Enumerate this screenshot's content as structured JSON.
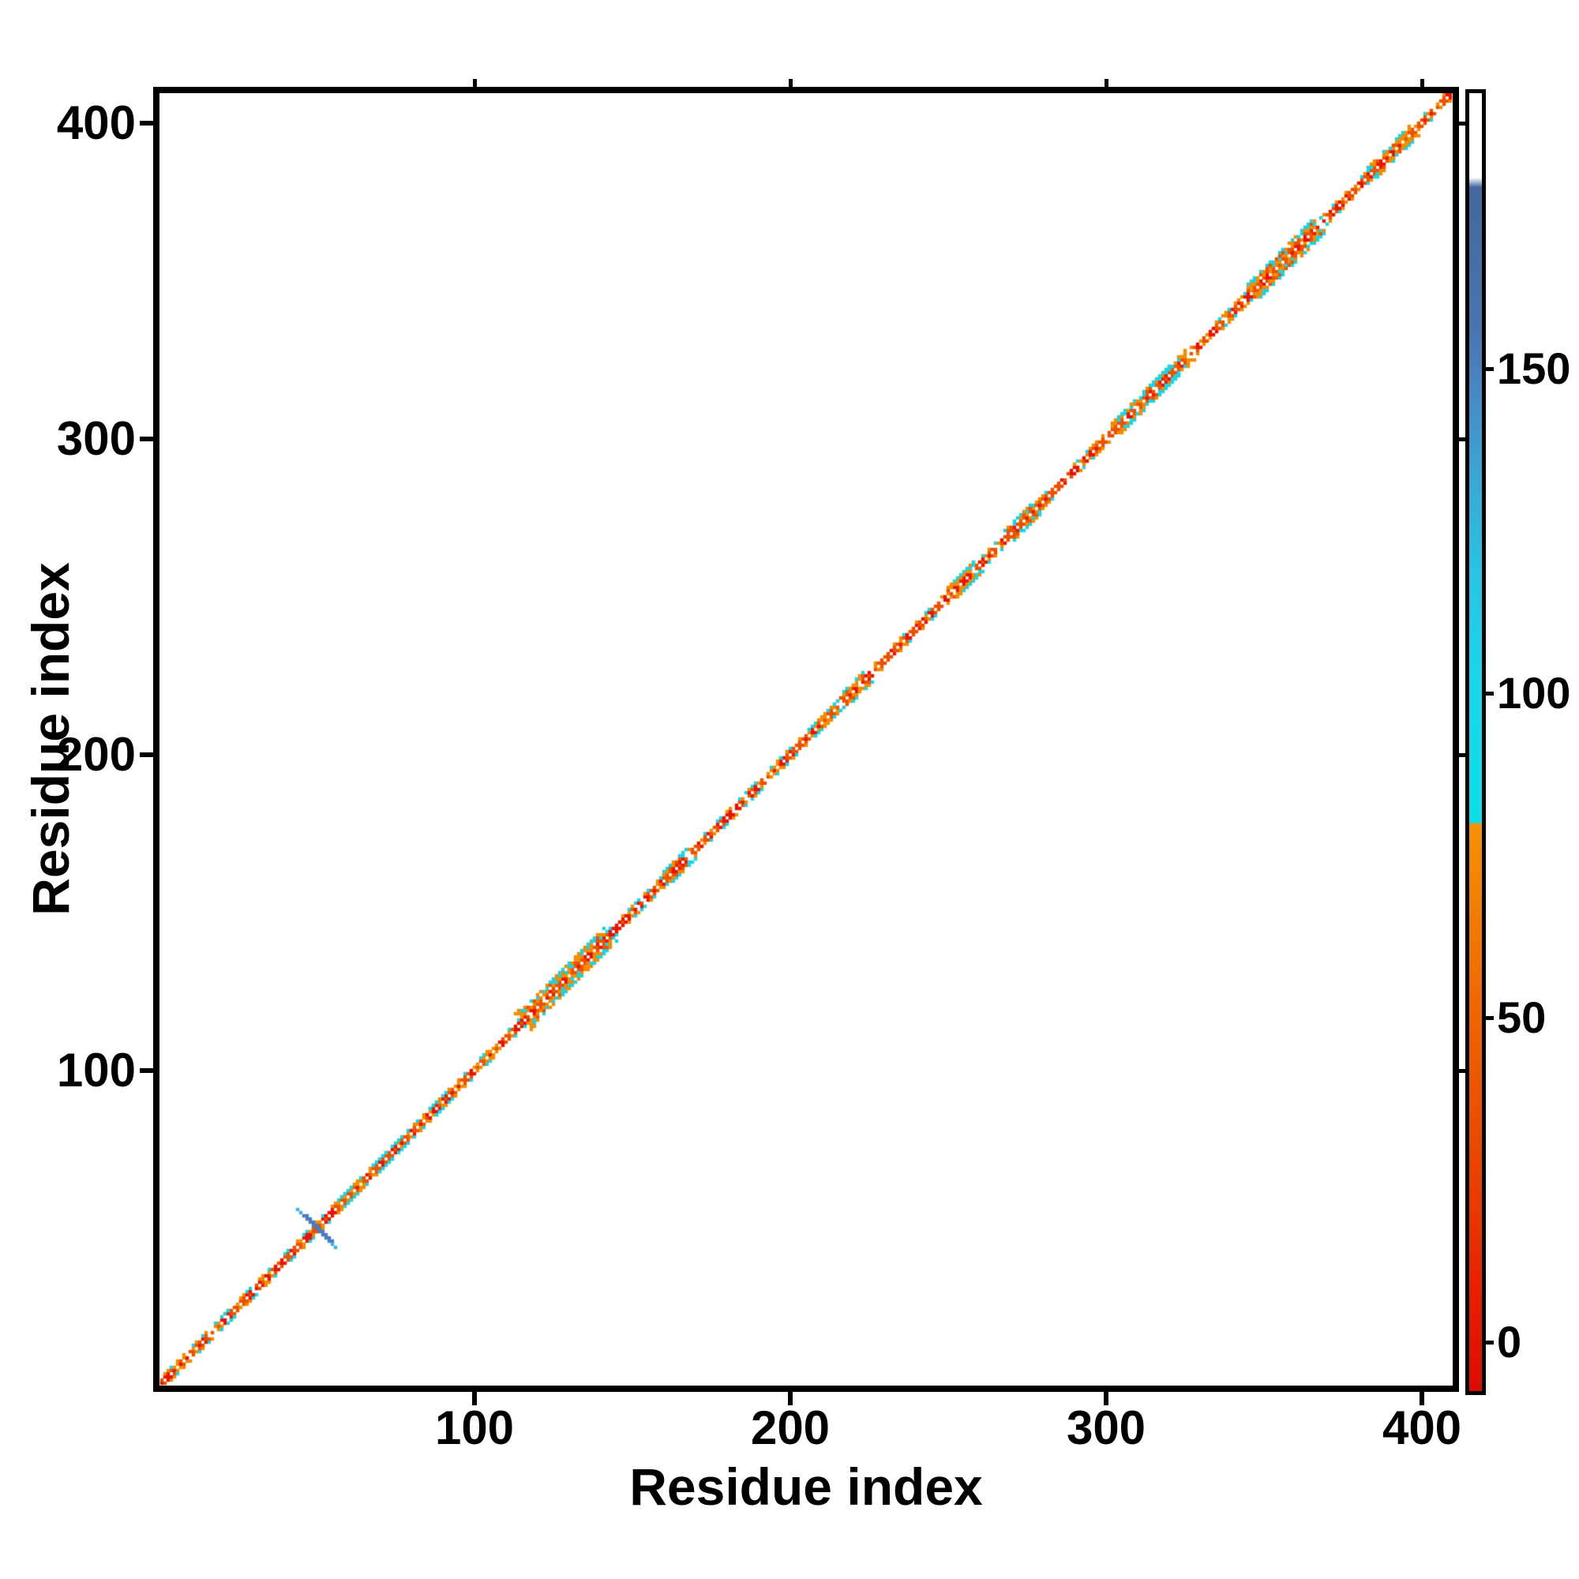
{
  "figure": {
    "background": "#ffffff",
    "x_axis": {
      "label": "Residue index",
      "ticks": [
        100,
        200,
        300,
        400
      ],
      "range": [
        0.5,
        409.5
      ]
    },
    "y_axis": {
      "label": "Residue index",
      "ticks": [
        100,
        200,
        300,
        400
      ],
      "range": [
        0.5,
        409.5
      ]
    },
    "colorbar": {
      "ticks": [
        0,
        50,
        100,
        150
      ],
      "range": [
        -7.5,
        192.5
      ],
      "gradient_stops": [
        [
          -7.5,
          "#da0c03"
        ],
        [
          8,
          "#e62000"
        ],
        [
          22,
          "#e73c00"
        ],
        [
          38,
          "#ea5404"
        ],
        [
          52,
          "#ed6806"
        ],
        [
          66,
          "#f07d05"
        ],
        [
          79.8,
          "#f39207"
        ],
        [
          80.2,
          "#0edde8"
        ],
        [
          100,
          "#1bd6e9"
        ],
        [
          118,
          "#2ac4e2"
        ],
        [
          132,
          "#3aa9d4"
        ],
        [
          143,
          "#4591c9"
        ],
        [
          152,
          "#4b7cba"
        ],
        [
          157,
          "#4a73ad"
        ],
        [
          178,
          "#44689e"
        ],
        [
          179.5,
          "#ffffff"
        ],
        [
          192.5,
          "#ffffff"
        ]
      ]
    }
  },
  "chart_data": {
    "type": "heatmap",
    "title": "",
    "xlabel": "Residue index",
    "ylabel": "Residue index",
    "x_range": [
      1,
      409
    ],
    "y_range": [
      1,
      409
    ],
    "axis_ticks": [
      100,
      200,
      300,
      400
    ],
    "colorbar_ticks": [
      0,
      50,
      100,
      150
    ],
    "colorbar_range": [
      -7.5,
      192.5
    ],
    "rng_seed": 1234,
    "palette": {
      "red": "#e71500",
      "orange_red": "#eb5200",
      "orange": "#f28c01",
      "cyan": "#1fd2e4",
      "slate": "#4a7cbe",
      "tip_blue": "#3cb3dd",
      "background": "#ffffff"
    },
    "main_diagonal": {
      "extent": [
        1,
        409
      ],
      "band_halfwidth": 2,
      "center_checker": [
        "white",
        "red",
        "orange_red"
      ],
      "flank_colors": [
        "red",
        "orange_red",
        "orange"
      ],
      "outer_speckle_colors": [
        "cyan",
        "orange"
      ],
      "outer_speckle_probability": 0.42
    },
    "features": [
      {
        "type": "bulge",
        "start": 18,
        "end": 24,
        "halfwidth": 2
      },
      {
        "type": "bulge",
        "start": 58,
        "end": 63,
        "halfwidth": 2
      },
      {
        "type": "bulge",
        "start": 68,
        "end": 76,
        "halfwidth": 2
      },
      {
        "type": "bulge",
        "start": 86,
        "end": 93,
        "halfwidth": 2
      },
      {
        "type": "bulge",
        "start": 115,
        "end": 141,
        "halfwidth": 4
      },
      {
        "type": "bulge",
        "start": 160,
        "end": 167,
        "halfwidth": 3
      },
      {
        "type": "bulge",
        "start": 196,
        "end": 215,
        "halfwidth": 2
      },
      {
        "type": "bulge",
        "start": 216,
        "end": 223,
        "halfwidth": 3
      },
      {
        "type": "bulge",
        "start": 250,
        "end": 258,
        "halfwidth": 3
      },
      {
        "type": "bulge",
        "start": 268,
        "end": 276,
        "halfwidth": 3
      },
      {
        "type": "bulge",
        "start": 302,
        "end": 325,
        "halfwidth": 3
      },
      {
        "type": "bulge",
        "start": 335,
        "end": 341,
        "halfwidth": 2
      },
      {
        "type": "bulge",
        "start": 345,
        "end": 366,
        "halfwidth": 4
      },
      {
        "type": "bulge",
        "start": 383,
        "end": 396,
        "halfwidth": 3
      },
      {
        "type": "cross",
        "from": [
          44,
          56
        ],
        "to": [
          56,
          44
        ],
        "color": "slate",
        "tip_color": "tip_blue"
      },
      {
        "type": "cluster",
        "cells": [
          [
            47,
            47
          ],
          [
            48,
            47
          ],
          [
            48,
            48
          ]
        ],
        "color": "red"
      },
      {
        "type": "cluster",
        "cells": [
          [
            113,
            118
          ],
          [
            114,
            118
          ],
          [
            114,
            119
          ]
        ],
        "color": "orange"
      }
    ]
  }
}
